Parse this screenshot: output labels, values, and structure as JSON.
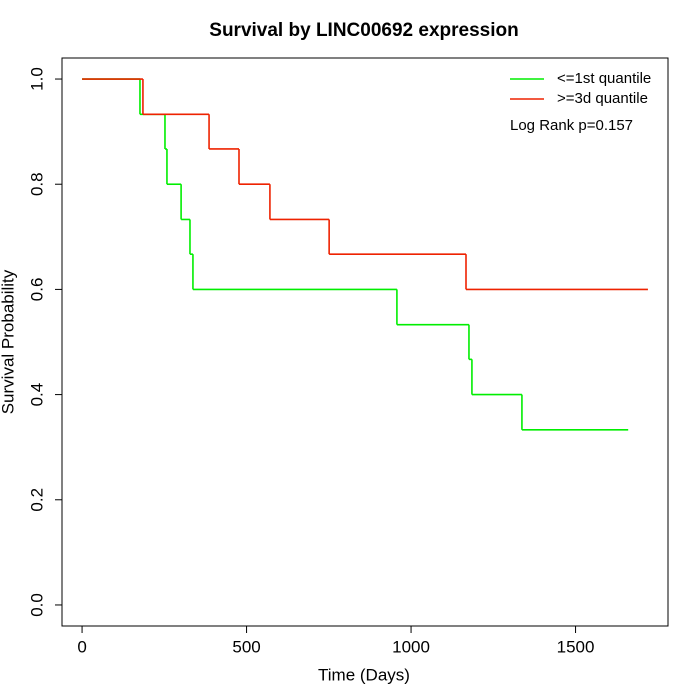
{
  "chart_data": {
    "type": "step",
    "title": "Survival by LINC00692 expression",
    "x_label": "Time (Days)",
    "y_label": "Survival Probability",
    "annotation": "Log Rank p=0.157",
    "legend_position": "top-right",
    "xlim": [
      -61,
      1781
    ],
    "ylim": [
      -0.04,
      1.04
    ],
    "xticks": [
      0,
      500,
      1000,
      1500
    ],
    "yticks": [
      {
        "value": 0,
        "label": "0.0"
      },
      {
        "value": 0.2,
        "label": "0.2"
      },
      {
        "value": 0.4,
        "label": "0.4"
      },
      {
        "value": 0.6,
        "label": "0.6"
      },
      {
        "value": 0.8,
        "label": "0.8"
      },
      {
        "value": 1,
        "label": "1.0"
      }
    ],
    "series": [
      {
        "name": "<=1st quantile",
        "color": "#00ee00",
        "x": [
          0,
          176,
          252,
          258,
          301,
          328,
          337,
          957,
          1176,
          1185,
          1337,
          1660
        ],
        "values": [
          1,
          0.933,
          0.867,
          0.8,
          0.733,
          0.667,
          0.6,
          0.533,
          0.467,
          0.4,
          0.333,
          0.333
        ]
      },
      {
        "name": ">=3d quantile",
        "color": "#ee2200",
        "x": [
          0,
          185,
          386,
          477,
          571,
          751,
          1167,
          1720
        ],
        "values": [
          1,
          0.933,
          0.867,
          0.8,
          0.733,
          0.667,
          0.6,
          0.6
        ]
      }
    ]
  }
}
